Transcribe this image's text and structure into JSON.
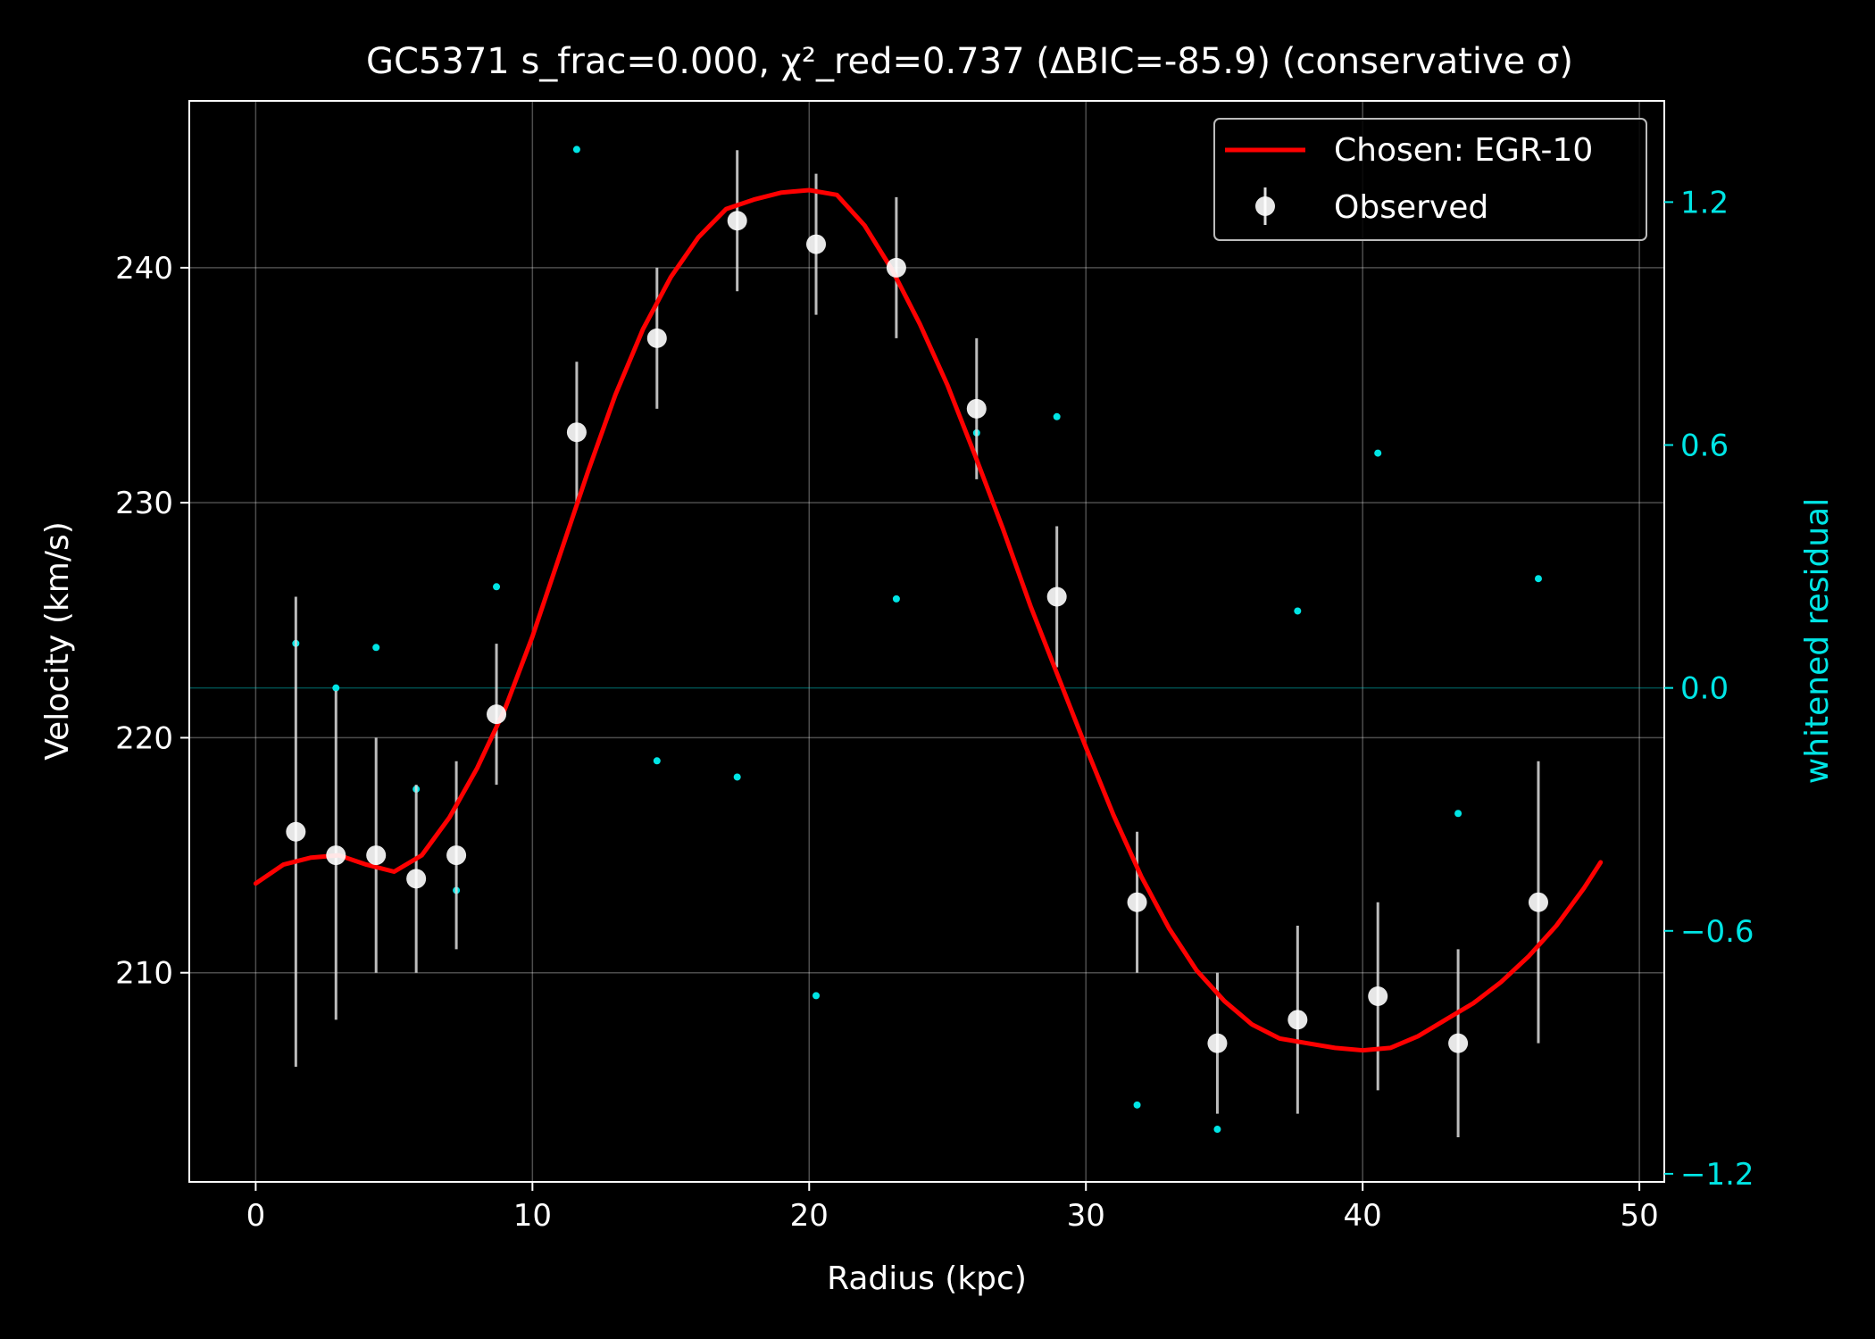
{
  "chart_data": {
    "type": "scatter",
    "title": "GC5371  s_frac=0.000, χ²_red=0.737  (ΔBIC=-85.9) (conservative σ)",
    "xlabel": "Radius (kpc)",
    "ylabel": "Velocity (km/s)",
    "y2label": "whitened residual",
    "xlim": [
      -2.4,
      50.9
    ],
    "ylim": [
      201.1,
      247.1
    ],
    "y2lim": [
      -1.22,
      1.45
    ],
    "x_ticks": [
      0,
      10,
      20,
      30,
      40,
      50
    ],
    "y_ticks": [
      210,
      220,
      230,
      240
    ],
    "y2_ticks": [
      -1.2,
      -0.6,
      0.0,
      0.6,
      1.2
    ],
    "y2_tick_labels": [
      "−1.2",
      "−0.6",
      "0.0",
      "0.6",
      "1.2"
    ],
    "grid": true,
    "legend_position": "top-right",
    "colors": {
      "background": "#000000",
      "fit": "#ff0000",
      "observed": "#ffffff",
      "residual": "#00e5e5",
      "axes": "#ffffff"
    },
    "series": [
      {
        "name": "Observed",
        "kind": "errorbar",
        "x": [
          1.45,
          2.9,
          4.35,
          5.8,
          7.25,
          8.7,
          11.6,
          14.5,
          17.4,
          20.25,
          23.15,
          26.05,
          28.95,
          31.85,
          34.75,
          37.65,
          40.55,
          43.45,
          46.35
        ],
        "y": [
          216,
          215,
          215,
          214,
          215,
          221,
          233,
          237,
          242,
          241,
          240,
          234,
          226,
          213,
          207,
          208,
          209,
          207,
          213
        ],
        "yerr": [
          10,
          7,
          5,
          4,
          4,
          3,
          3,
          3,
          3,
          3,
          3,
          3,
          3,
          3,
          3,
          4,
          4,
          4,
          6
        ]
      },
      {
        "name": "Chosen: EGR-10",
        "kind": "line",
        "x": [
          0,
          1,
          2,
          3,
          4,
          5,
          6,
          7,
          8,
          9,
          10,
          11,
          12,
          13,
          14,
          15,
          16,
          17,
          18,
          19,
          20,
          21,
          22,
          23,
          24,
          25,
          26,
          27,
          28,
          29,
          30,
          31,
          32,
          33,
          34,
          35,
          36,
          37,
          38,
          39,
          40,
          41,
          42,
          43,
          44,
          45,
          46,
          47,
          48,
          48.6
        ],
        "y": [
          213.8,
          214.6,
          214.9,
          215.0,
          214.6,
          214.3,
          215.0,
          216.6,
          218.7,
          221.2,
          224.3,
          227.8,
          231.3,
          234.6,
          237.4,
          239.6,
          241.3,
          242.5,
          242.9,
          243.2,
          243.3,
          243.1,
          241.8,
          239.9,
          237.6,
          235.0,
          232.0,
          228.9,
          225.6,
          222.6,
          219.6,
          216.7,
          214.1,
          211.9,
          210.1,
          208.8,
          207.8,
          207.2,
          207.0,
          206.8,
          206.7,
          206.8,
          207.3,
          208.0,
          208.7,
          209.6,
          210.7,
          212.0,
          213.6,
          214.7
        ]
      },
      {
        "name": "whitened residual",
        "kind": "points",
        "x": [
          1.45,
          2.9,
          4.35,
          5.8,
          7.25,
          8.7,
          11.6,
          14.5,
          17.4,
          20.25,
          23.15,
          26.05,
          28.95,
          31.85,
          34.75,
          37.65,
          40.55,
          43.45,
          46.35
        ],
        "y": [
          0.11,
          0.0,
          0.1,
          -0.25,
          -0.5,
          0.25,
          1.33,
          -0.18,
          -0.22,
          -0.76,
          0.22,
          0.63,
          0.67,
          -1.03,
          -1.09,
          0.19,
          0.58,
          -0.31,
          0.27
        ]
      }
    ]
  }
}
